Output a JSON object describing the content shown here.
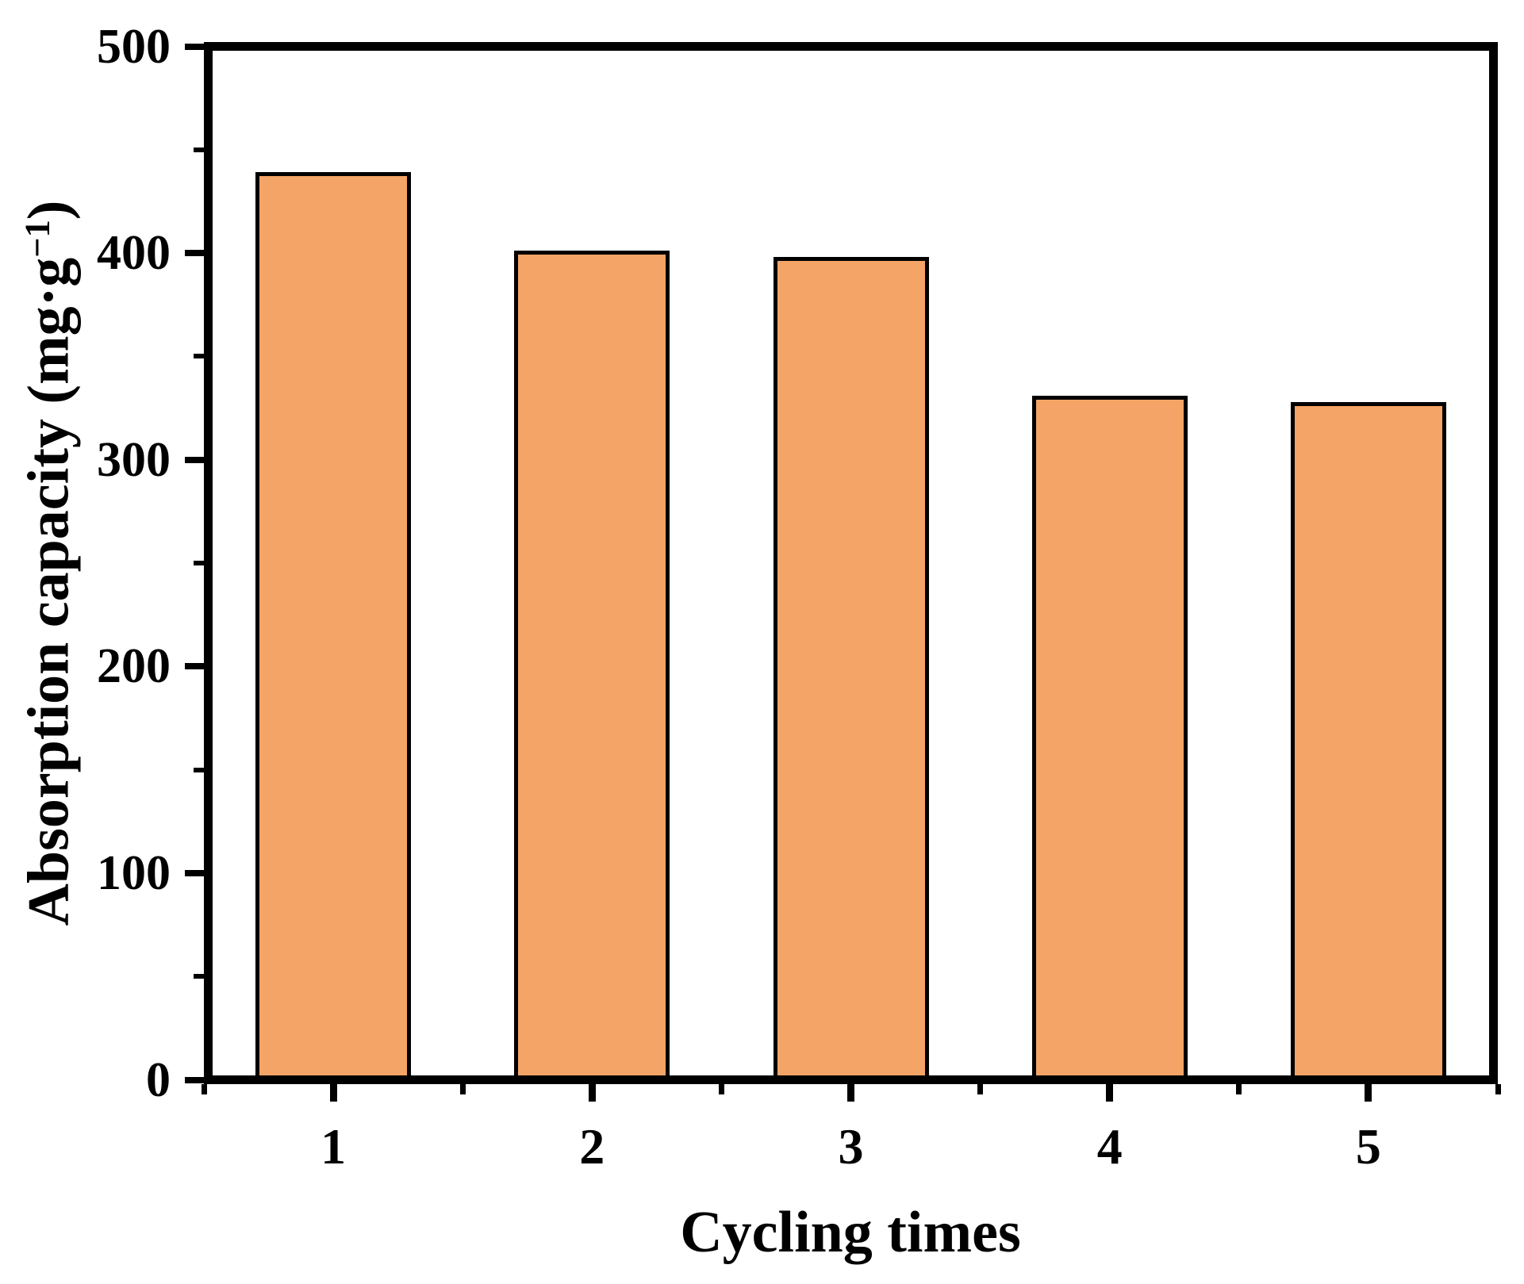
{
  "figure": {
    "background": "#ffffff",
    "axis_color": "#000000",
    "text_color": "#000000"
  },
  "chart_data": {
    "type": "bar",
    "title": "",
    "xlabel": "Cycling times",
    "ylabel": "Absorption capacity (mg·g⁻¹)",
    "ylabel_parts": {
      "prefix": "Absorption capacity (mg·g",
      "superscript": "−1",
      "suffix": ")"
    },
    "categories": [
      "1",
      "2",
      "3",
      "4",
      "5"
    ],
    "values": [
      439,
      401,
      398,
      331,
      328
    ],
    "ylim": [
      0,
      500
    ],
    "y_major_ticks": [
      0,
      100,
      200,
      300,
      400,
      500
    ],
    "y_major_tick_labels": [
      "0",
      "100",
      "200",
      "300",
      "400",
      "500"
    ],
    "y_minor_ticks": [
      50,
      150,
      250,
      350,
      450
    ],
    "x_minor_tick_slots": [
      0,
      1,
      2,
      3,
      4,
      5
    ],
    "grid": false,
    "legend": null,
    "bar_fill": "#f4a466",
    "bar_stroke": "#000000",
    "bar_stroke_width": 5,
    "tick_direction": "out"
  }
}
